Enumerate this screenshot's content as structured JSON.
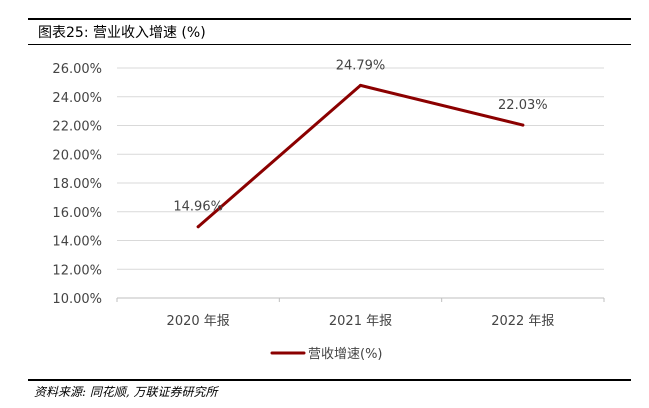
{
  "figure": {
    "title": "图表25:  营业收入增速 (%)",
    "source": "资料来源: 同花顺, 万联证券研究所"
  },
  "chart_data": {
    "type": "line",
    "categories": [
      "2020 年报",
      "2021 年报",
      "2022 年报"
    ],
    "series": [
      {
        "name": "营收增速(%)",
        "values": [
          14.96,
          24.79,
          22.03
        ],
        "color": "#8b0000"
      }
    ],
    "data_labels": [
      "14.96%",
      "24.79%",
      "22.03%"
    ],
    "ylim": [
      10,
      26
    ],
    "y_ticks": [
      10,
      12,
      14,
      16,
      18,
      20,
      22,
      24,
      26
    ],
    "y_tick_labels": [
      "10.00%",
      "12.00%",
      "14.00%",
      "16.00%",
      "18.00%",
      "20.00%",
      "22.00%",
      "24.00%",
      "26.00%"
    ],
    "grid": true,
    "legend": "bottom-center"
  }
}
